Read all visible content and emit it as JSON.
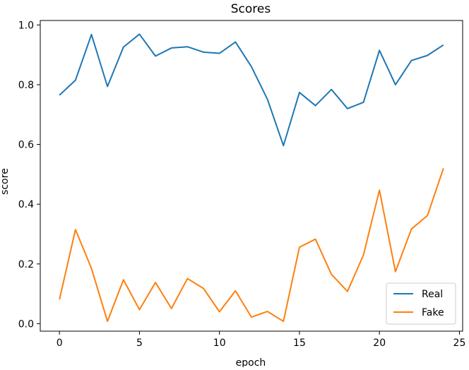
{
  "chart_data": {
    "type": "line",
    "title": "Scores",
    "xlabel": "epoch",
    "ylabel": "score",
    "xlim": [
      -1.2,
      25.2
    ],
    "ylim": [
      -0.025,
      1.015
    ],
    "x_ticks": [
      0,
      5,
      10,
      15,
      20,
      25
    ],
    "y_ticks": [
      0.0,
      0.2,
      0.4,
      0.6,
      0.8,
      1.0
    ],
    "x_tick_labels": [
      "0",
      "5",
      "10",
      "15",
      "20",
      "25"
    ],
    "y_tick_labels": [
      "0.0",
      "0.2",
      "0.4",
      "0.6",
      "0.8",
      "1.0"
    ],
    "grid": false,
    "legend_position": "lower-right",
    "x": [
      0,
      1,
      2,
      3,
      4,
      5,
      6,
      7,
      8,
      9,
      10,
      11,
      12,
      13,
      14,
      15,
      16,
      17,
      18,
      19,
      20,
      21,
      22,
      23,
      24
    ],
    "series": [
      {
        "name": "Real",
        "color": "#1f77b4",
        "values": [
          0.765,
          0.815,
          0.968,
          0.794,
          0.926,
          0.969,
          0.896,
          0.923,
          0.927,
          0.909,
          0.905,
          0.943,
          0.86,
          0.751,
          0.596,
          0.774,
          0.73,
          0.784,
          0.72,
          0.741,
          0.915,
          0.8,
          0.881,
          0.898,
          0.933
        ]
      },
      {
        "name": "Fake",
        "color": "#ff7f0e",
        "values": [
          0.081,
          0.315,
          0.185,
          0.008,
          0.147,
          0.047,
          0.138,
          0.051,
          0.151,
          0.118,
          0.04,
          0.11,
          0.022,
          0.041,
          0.008,
          0.256,
          0.283,
          0.165,
          0.108,
          0.23,
          0.447,
          0.174,
          0.317,
          0.362,
          0.52
        ]
      }
    ]
  }
}
